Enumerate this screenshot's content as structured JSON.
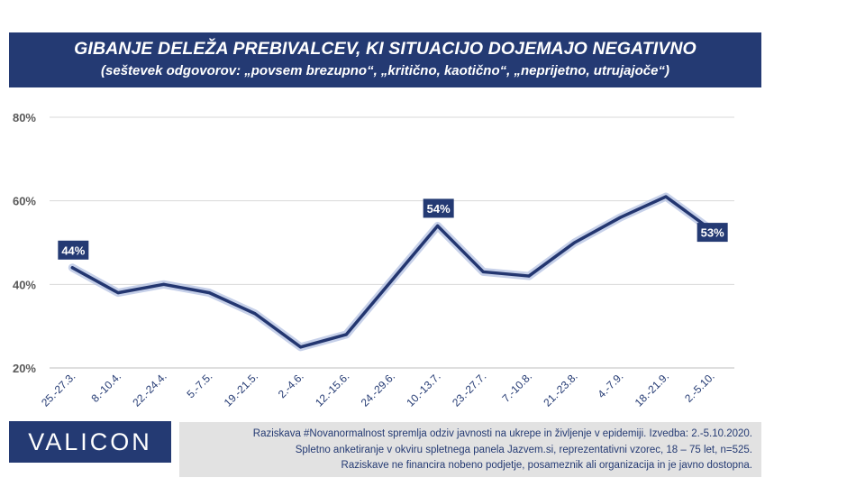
{
  "title": "GIBANJE DELEŽA PREBIVALCEV, KI SITUACIJO DOJEMAJO NEGATIVNO",
  "subtitle": "(seštevek odgovorov: „povsem brezupno“, „kritično, kaotično“, „neprijetno, utrujajoče“)",
  "logo": "VALICON",
  "footer": {
    "line1": "Raziskava #Novanormalnost spremlja odziv javnosti na ukrepe in življenje v epidemiji. Izvedba: 2.-5.10.2020.",
    "line2": "Spletno anketiranje v okviru spletnega panela Jazvem.si, reprezentativni vzorec, 18 – 75 let, n=525.",
    "line3": "Raziskave ne financira nobeno podjetje, posameznik ali organizacija in je javno dostopna."
  },
  "colors": {
    "brand": "#243a73",
    "line": "#233670",
    "glow": "#aebce0",
    "grid": "#d9d9d9",
    "footer_bg": "#e2e2e2"
  },
  "chart_data": {
    "type": "line",
    "categories": [
      "25.-27.3.",
      "8.-10.4.",
      "22.-24.4.",
      "5.-7.5.",
      "19.-21.5.",
      "2.-4.6.",
      "12.-15.6.",
      "24.-29.6.",
      "10.-13.7.",
      "23.-27.7.",
      "7.-10.8.",
      "21.-23.8.",
      "4.-7.9.",
      "18.-21.9.",
      "2.-5.10."
    ],
    "series": [
      {
        "values": [
          44,
          38,
          40,
          38,
          33,
          25,
          28,
          41,
          54,
          43,
          42,
          50,
          56,
          61,
          53
        ]
      }
    ],
    "yticks": [
      "20%",
      "40%",
      "60%",
      "80%"
    ],
    "ylim": [
      20,
      80
    ],
    "grid": true,
    "data_labels": [
      {
        "index": 0,
        "text": "44%"
      },
      {
        "index": 8,
        "text": "54%"
      },
      {
        "index": 14,
        "text": "53%"
      }
    ]
  }
}
